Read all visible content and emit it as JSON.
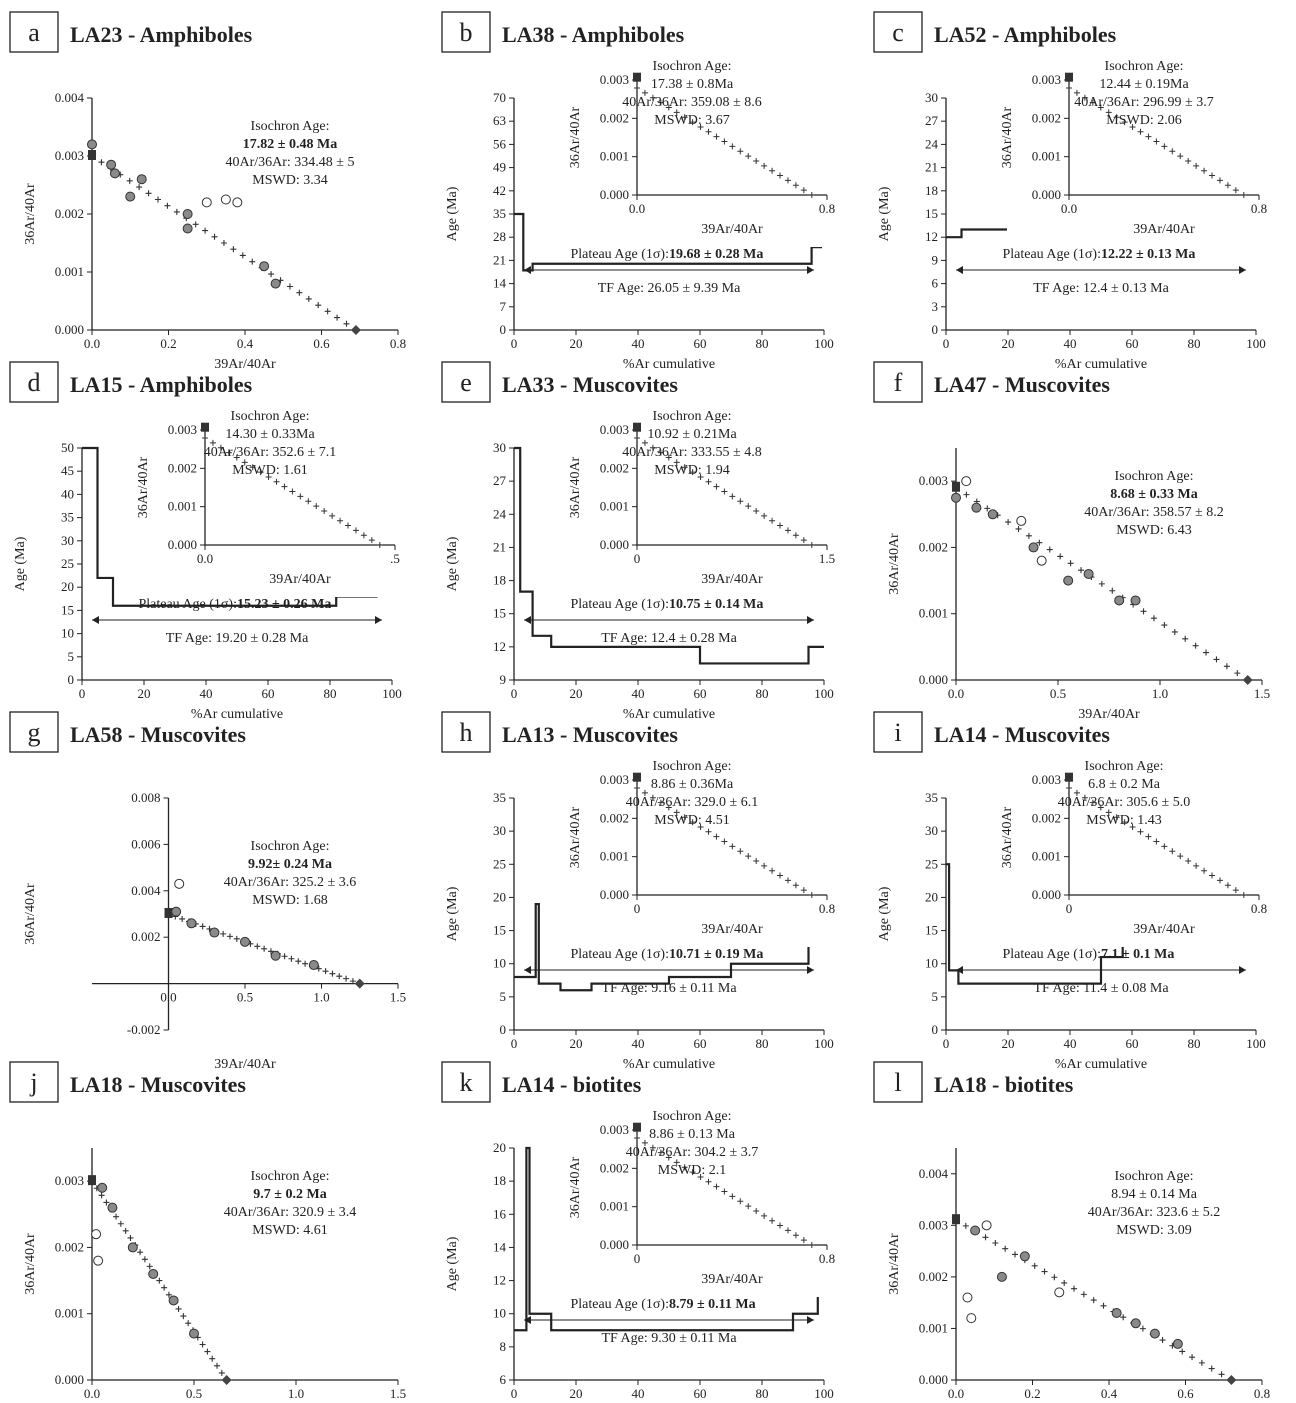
{
  "figure": {
    "panels": [
      {
        "letter": "a",
        "title": "LA23 - Amphiboles"
      },
      {
        "letter": "b",
        "title": "LA38 - Amphiboles"
      },
      {
        "letter": "c",
        "title": "LA52 - Amphiboles"
      },
      {
        "letter": "d",
        "title": "LA15 - Amphiboles"
      },
      {
        "letter": "e",
        "title": "LA33 - Muscovites"
      },
      {
        "letter": "f",
        "title": "LA47 - Muscovites"
      },
      {
        "letter": "g",
        "title": "LA58 - Muscovites"
      },
      {
        "letter": "h",
        "title": "LA13 - Muscovites"
      },
      {
        "letter": "i",
        "title": "LA14 - Muscovites"
      },
      {
        "letter": "j",
        "title": "LA18 - Muscovites"
      },
      {
        "letter": "k",
        "title": "LA14 - biotites"
      },
      {
        "letter": "l",
        "title": "LA18 - biotites"
      }
    ]
  },
  "chart_data": [
    {
      "panel": "a",
      "type": "scatter",
      "title": "LA23 - Amphiboles",
      "xlabel": "39Ar/40Ar",
      "ylabel": "36Ar/40Ar",
      "xlim": [
        0,
        0.8
      ],
      "ylim": [
        0,
        0.004
      ],
      "xticks": [
        "0.0",
        "0.2",
        "0.4",
        "0.6",
        "0.8"
      ],
      "yticks": [
        "0.000",
        "0.001",
        "0.002",
        "0.003",
        "0.004"
      ],
      "isochron_line": {
        "x": [
          0,
          0.69
        ],
        "y": [
          0.003,
          0.0
        ]
      },
      "points_filled": [
        [
          0,
          0.0032
        ],
        [
          0.05,
          0.00285
        ],
        [
          0.06,
          0.0027
        ],
        [
          0.1,
          0.0023
        ],
        [
          0.13,
          0.0026
        ],
        [
          0.25,
          0.00175
        ],
        [
          0.25,
          0.002
        ],
        [
          0.45,
          0.0011
        ],
        [
          0.48,
          0.0008
        ]
      ],
      "points_open": [
        [
          0.3,
          0.0022
        ],
        [
          0.35,
          0.00225
        ],
        [
          0.38,
          0.0022
        ]
      ],
      "annotations": [
        "Isochron Age:",
        "17.82 ± 0.48 Ma",
        "40Ar/36Ar:  334.48 ± 5",
        "MSWD:  3.34"
      ]
    },
    {
      "panel": "b",
      "type": "line",
      "title": "LA38 - Amphiboles",
      "xlabel": "%Ar cumulative",
      "ylabel": "Age (Ma)",
      "xlim": [
        0,
        100
      ],
      "ylim": [
        0,
        70
      ],
      "xticks": [
        "0",
        "20",
        "40",
        "60",
        "80",
        "100"
      ],
      "yticks": [
        "0",
        "7",
        "14",
        "21",
        "28",
        "35",
        "42",
        "49",
        "56",
        "63",
        "70"
      ],
      "age_spectrum": [
        [
          0,
          35
        ],
        [
          3,
          35
        ],
        [
          3,
          18
        ],
        [
          6,
          18
        ],
        [
          6,
          20
        ],
        [
          96,
          20
        ],
        [
          96,
          25
        ],
        [
          99,
          25
        ],
        [
          99,
          60
        ]
      ],
      "annotations": [
        "Plateau Age (1σ):",
        "19.68 ± 0.28 Ma",
        "TF Age:  26.05 ±  9.39 Ma"
      ],
      "inset": {
        "xlabel": "39Ar/40Ar",
        "ylabel": "36Ar/40Ar",
        "xlim": [
          0,
          0.8
        ],
        "ylim": [
          0,
          0.003
        ],
        "xticks": [
          "0.0",
          "0.8"
        ],
        "yticks": [
          "0.000",
          "0.001",
          "0.002",
          "0.003"
        ],
        "annotations": [
          "Isochron Age:",
          "17.38 ± 0.8Ma",
          "40Ar/36Ar:  359.08 ± 8.6",
          "MSWD:  3.67"
        ]
      }
    },
    {
      "panel": "c",
      "type": "line",
      "title": "LA52 - Amphiboles",
      "xlabel": "%Ar cumulative",
      "ylabel": "Age (Ma)",
      "xlim": [
        0,
        100
      ],
      "ylim": [
        0,
        30
      ],
      "xticks": [
        "0",
        "20",
        "40",
        "60",
        "80",
        "100"
      ],
      "yticks": [
        "0",
        "3",
        "6",
        "9",
        "12",
        "15",
        "18",
        "21",
        "24",
        "27",
        "30"
      ],
      "age_spectrum": [
        [
          0,
          12
        ],
        [
          5,
          12
        ],
        [
          5,
          13
        ],
        [
          100,
          13
        ],
        [
          100,
          15
        ]
      ],
      "annotations": [
        "Plateau Age (1σ):",
        "12.22 ± 0.13 Ma",
        "TF Age:  12.4 ±  0.13 Ma"
      ],
      "inset": {
        "xlabel": "39Ar/40Ar",
        "ylabel": "36Ar/40Ar",
        "xlim": [
          0,
          0.8
        ],
        "ylim": [
          0,
          0.003
        ],
        "xticks": [
          "0.0",
          "0.8"
        ],
        "yticks": [
          "0.000",
          "0.001",
          "0.002",
          "0.003"
        ],
        "annotations": [
          "Isochron Age:",
          "12.44 ± 0.19Ma",
          "40Ar/36Ar:  296.99 ± 3.7",
          "MSWD:  2.06"
        ]
      }
    },
    {
      "panel": "d",
      "type": "line",
      "title": "LA15 - Amphiboles",
      "xlabel": "%Ar cumulative",
      "ylabel": "Age (Ma)",
      "xlim": [
        0,
        100
      ],
      "ylim": [
        0,
        50
      ],
      "xticks": [
        "0",
        "20",
        "40",
        "60",
        "80",
        "100"
      ],
      "yticks": [
        "0",
        "5",
        "10",
        "15",
        "20",
        "25",
        "30",
        "35",
        "40",
        "45",
        "50"
      ],
      "age_spectrum": [
        [
          0,
          52
        ],
        [
          5,
          52
        ],
        [
          5,
          22
        ],
        [
          10,
          22
        ],
        [
          10,
          16
        ],
        [
          82,
          16
        ],
        [
          82,
          18
        ],
        [
          95,
          18
        ],
        [
          95,
          30
        ],
        [
          100,
          30
        ]
      ],
      "annotations": [
        "Plateau Age (1σ):",
        "15.23 ± 0.26 Ma",
        "TF Age:  19.20 ±  0.28 Ma"
      ],
      "inset": {
        "xlabel": "39Ar/40Ar",
        "ylabel": "36Ar/40Ar",
        "xlim": [
          0,
          0.5
        ],
        "ylim": [
          0,
          0.003
        ],
        "xticks": [
          "0.0",
          ".5"
        ],
        "yticks": [
          "0.000",
          "0.001",
          "0.002",
          "0.003"
        ],
        "annotations": [
          "Isochron Age:",
          "14.30 ± 0.33Ma",
          "40Ar/36Ar:  352.6 ± 7.1",
          "MSWD:  1.61"
        ]
      }
    },
    {
      "panel": "e",
      "type": "line",
      "title": "LA33 - Muscovites",
      "xlabel": "%Ar cumulative",
      "ylabel": "Age (Ma)",
      "xlim": [
        0,
        100
      ],
      "ylim": [
        9,
        30
      ],
      "xticks": [
        "0",
        "20",
        "40",
        "60",
        "80",
        "100"
      ],
      "yticks": [
        "9",
        "12",
        "15",
        "18",
        "21",
        "24",
        "27",
        "30"
      ],
      "age_spectrum": [
        [
          0,
          30
        ],
        [
          2,
          30
        ],
        [
          2,
          17
        ],
        [
          6,
          17
        ],
        [
          6,
          13
        ],
        [
          12,
          13
        ],
        [
          12,
          12
        ],
        [
          60,
          12
        ],
        [
          60,
          10.5
        ],
        [
          95,
          10.5
        ],
        [
          95,
          12
        ],
        [
          100,
          12
        ]
      ],
      "annotations": [
        "Plateau Age (1σ):",
        "10.75 ± 0.14 Ma",
        "TF Age:  12.4 ±  0.28 Ma"
      ],
      "inset": {
        "xlabel": "39Ar/40Ar",
        "ylabel": "36Ar/40Ar",
        "xlim": [
          0,
          1.5
        ],
        "ylim": [
          0,
          0.003
        ],
        "xticks": [
          "0",
          "1.5"
        ],
        "yticks": [
          "0.000",
          "0.001",
          "0.002",
          "0.003"
        ],
        "annotations": [
          "Isochron Age:",
          "10.92 ± 0.21Ma",
          "40Ar/36Ar:  333.55 ± 4.8",
          "MSWD:  1.94"
        ]
      }
    },
    {
      "panel": "f",
      "type": "scatter",
      "title": "LA47 - Muscovites",
      "xlabel": "39Ar/40Ar",
      "ylabel": "36Ar/40Ar",
      "xlim": [
        0,
        1.5
      ],
      "ylim": [
        0,
        0.0035
      ],
      "xticks": [
        "0.0",
        "0.5",
        "1.0",
        "1.5"
      ],
      "yticks": [
        "0.000",
        "0.001",
        "0.002",
        "0.003"
      ],
      "isochron_line": {
        "x": [
          0,
          1.43
        ],
        "y": [
          0.0029,
          0.0
        ]
      },
      "points_filled": [
        [
          0.0,
          0.00275
        ],
        [
          0.1,
          0.0026
        ],
        [
          0.18,
          0.0025
        ],
        [
          0.38,
          0.002
        ],
        [
          0.55,
          0.0015
        ],
        [
          0.65,
          0.0016
        ],
        [
          0.8,
          0.0012
        ],
        [
          0.88,
          0.0012
        ]
      ],
      "points_open": [
        [
          0.05,
          0.003
        ],
        [
          0.32,
          0.0024
        ],
        [
          0.42,
          0.0018
        ]
      ],
      "annotations": [
        "Isochron Age:",
        "8.68 ± 0.33 Ma",
        "40Ar/36Ar:  358.57 ± 8.2",
        "MSWD:  6.43"
      ]
    },
    {
      "panel": "g",
      "type": "scatter",
      "title": "LA58 - Muscovites",
      "xlabel": "39Ar/40Ar",
      "ylabel": "36Ar/40Ar",
      "xlim": [
        -0.5,
        1.5
      ],
      "ylim": [
        -0.002,
        0.008
      ],
      "xticks": [
        "0.0",
        "0.5",
        "1.0",
        "1.5"
      ],
      "yticks": [
        "-0.002",
        "0.002",
        "0.004",
        "0.006",
        "0.008"
      ],
      "isochron_line": {
        "x": [
          0,
          1.25
        ],
        "y": [
          0.003,
          0.0
        ]
      },
      "points_filled": [
        [
          0.05,
          0.0031
        ],
        [
          0.15,
          0.0026
        ],
        [
          0.3,
          0.0022
        ],
        [
          0.5,
          0.0018
        ],
        [
          0.7,
          0.0012
        ],
        [
          0.95,
          0.0008
        ]
      ],
      "points_open": [
        [
          0.07,
          0.0043
        ]
      ],
      "annotations": [
        "Isochron Age:",
        "9.92± 0.24 Ma",
        "40Ar/36Ar:  325.2 ± 3.6",
        "MSWD:  1.68"
      ]
    },
    {
      "panel": "h",
      "type": "line",
      "title": "LA13 - Muscovites",
      "xlabel": "%Ar cumulative",
      "ylabel": "Age (Ma)",
      "xlim": [
        0,
        100
      ],
      "ylim": [
        0,
        35
      ],
      "xticks": [
        "0",
        "20",
        "40",
        "60",
        "80",
        "100"
      ],
      "yticks": [
        "0",
        "5",
        "10",
        "15",
        "20",
        "25",
        "30",
        "35"
      ],
      "age_spectrum": [
        [
          0,
          8
        ],
        [
          7,
          8
        ],
        [
          7,
          19
        ],
        [
          8,
          19
        ],
        [
          8,
          7
        ],
        [
          15,
          7
        ],
        [
          15,
          6
        ],
        [
          25,
          6
        ],
        [
          25,
          7
        ],
        [
          50,
          7
        ],
        [
          50,
          8
        ],
        [
          70,
          8
        ],
        [
          70,
          10
        ],
        [
          95,
          10
        ],
        [
          95,
          15
        ],
        [
          100,
          15
        ]
      ],
      "annotations": [
        "Plateau Age (1σ):",
        "10.71 ± 0.19 Ma",
        "TF Age:  9.16 ±  0.11 Ma"
      ],
      "inset": {
        "xlabel": "39Ar/40Ar",
        "ylabel": "36Ar/40Ar",
        "xlim": [
          0,
          0.8
        ],
        "ylim": [
          0,
          0.003
        ],
        "xticks": [
          "0",
          "0.8"
        ],
        "yticks": [
          "0.000",
          "0.001",
          "0.002",
          "0.003"
        ],
        "annotations": [
          "Isochron Age:",
          "8.86 ± 0.36Ma",
          "40Ar/36Ar:  329.0 ± 6.1",
          "MSWD:  4.51"
        ]
      }
    },
    {
      "panel": "i",
      "type": "line",
      "title": "LA14 - Muscovites",
      "xlabel": "%Ar cumulative",
      "ylabel": "Age (Ma)",
      "xlim": [
        0,
        100
      ],
      "ylim": [
        0,
        35
      ],
      "xticks": [
        "0",
        "20",
        "40",
        "60",
        "80",
        "100"
      ],
      "yticks": [
        "0",
        "5",
        "10",
        "15",
        "20",
        "25",
        "30",
        "35"
      ],
      "age_spectrum": [
        [
          0,
          25
        ],
        [
          1,
          25
        ],
        [
          1,
          9
        ],
        [
          4,
          9
        ],
        [
          4,
          7
        ],
        [
          50,
          7
        ],
        [
          50,
          11
        ],
        [
          57,
          11
        ],
        [
          57,
          15
        ],
        [
          100,
          15
        ]
      ],
      "annotations": [
        "Plateau Age (1σ):",
        "7.1 ± 0.1 Ma",
        "TF Age:  11.4 ± 0.08 Ma"
      ],
      "inset": {
        "xlabel": "39Ar/40Ar",
        "ylabel": "36Ar/40Ar",
        "xlim": [
          0,
          0.8
        ],
        "ylim": [
          0,
          0.003
        ],
        "xticks": [
          "0",
          "0.8"
        ],
        "yticks": [
          "0.000",
          "0.001",
          "0.002",
          "0.003"
        ],
        "annotations": [
          "Isochron Age:",
          "6.8 ± 0.2 Ma",
          "40Ar/36Ar:  305.6 ± 5.0",
          "MSWD:  1.43"
        ]
      }
    },
    {
      "panel": "j",
      "type": "scatter",
      "title": "LA18 - Muscovites",
      "xlabel": "39Ar/40Ar",
      "ylabel": "36Ar/40Ar",
      "xlim": [
        0,
        1.5
      ],
      "ylim": [
        0,
        0.0035
      ],
      "xticks": [
        "0.0",
        "0.5",
        "1.0",
        "1.5"
      ],
      "yticks": [
        "0.000",
        "0.001",
        "0.002",
        "0.003"
      ],
      "isochron_line": {
        "x": [
          0,
          0.66
        ],
        "y": [
          0.003,
          0.0
        ]
      },
      "points_filled": [
        [
          0.05,
          0.0029
        ],
        [
          0.1,
          0.0026
        ],
        [
          0.2,
          0.002
        ],
        [
          0.3,
          0.0016
        ],
        [
          0.4,
          0.0012
        ],
        [
          0.5,
          0.0007
        ]
      ],
      "points_open": [
        [
          0.02,
          0.0022
        ],
        [
          0.03,
          0.0018
        ]
      ],
      "annotations": [
        "Isochron Age:",
        "9.7 ± 0.2 Ma",
        "40Ar/36Ar:  320.9 ± 3.4",
        "MSWD:  4.61"
      ]
    },
    {
      "panel": "k",
      "type": "line",
      "title": "LA14 - biotites",
      "xlabel": "%Ar cumulative",
      "ylabel": "Age (Ma)",
      "xlim": [
        0,
        100
      ],
      "ylim": [
        6,
        20
      ],
      "xticks": [
        "0",
        "20",
        "40",
        "60",
        "80",
        "100"
      ],
      "yticks": [
        "6",
        "8",
        "10",
        "12",
        "14",
        "16",
        "18",
        "20"
      ],
      "age_spectrum": [
        [
          0,
          9
        ],
        [
          4,
          9
        ],
        [
          4,
          20
        ],
        [
          5,
          20
        ],
        [
          5,
          10
        ],
        [
          12,
          10
        ],
        [
          12,
          9
        ],
        [
          90,
          9
        ],
        [
          90,
          10
        ],
        [
          98,
          10
        ],
        [
          98,
          14
        ],
        [
          100,
          14
        ]
      ],
      "annotations": [
        "Plateau Age (1σ):",
        "8.79 ± 0.11 Ma",
        "TF Age:  9.30 ±  0.11 Ma"
      ],
      "inset": {
        "xlabel": "39Ar/40Ar",
        "ylabel": "36Ar/40Ar",
        "xlim": [
          0,
          0.8
        ],
        "ylim": [
          0,
          0.003
        ],
        "xticks": [
          "0",
          "0.8"
        ],
        "yticks": [
          "0.000",
          "0.001",
          "0.002",
          "0.003"
        ],
        "annotations": [
          "Isochron Age:",
          "8.86 ± 0.13 Ma",
          "40Ar/36Ar:  304.2 ± 3.7",
          "MSWD:  2.1"
        ]
      }
    },
    {
      "panel": "l",
      "type": "scatter",
      "title": "LA18 - biotites",
      "xlabel": "39Ar/40Ar",
      "ylabel": "36Ar/40Ar",
      "xlim": [
        0,
        0.8
      ],
      "ylim": [
        0,
        0.0045
      ],
      "xticks": [
        "0.0",
        "0.2",
        "0.4",
        "0.6",
        "0.8"
      ],
      "yticks": [
        "0.000",
        "0.001",
        "0.002",
        "0.003",
        "0.004"
      ],
      "isochron_line": {
        "x": [
          0,
          0.72
        ],
        "y": [
          0.0031,
          0.0
        ]
      },
      "points_filled": [
        [
          0.05,
          0.0029
        ],
        [
          0.12,
          0.002
        ],
        [
          0.18,
          0.0024
        ],
        [
          0.42,
          0.0013
        ],
        [
          0.47,
          0.0011
        ],
        [
          0.52,
          0.0009
        ],
        [
          0.58,
          0.0007
        ]
      ],
      "points_open": [
        [
          0.08,
          0.003
        ],
        [
          0.04,
          0.0012
        ],
        [
          0.03,
          0.0016
        ],
        [
          0.27,
          0.0017
        ]
      ],
      "annotations": [
        "Isochron Age:",
        "8.94 ± 0.14 Ma",
        "40Ar/36Ar:  323.6 ± 5.2",
        "MSWD:  3.09"
      ]
    }
  ]
}
